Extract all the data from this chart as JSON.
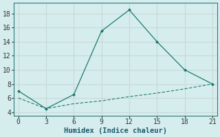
{
  "line1_x": [
    0,
    3,
    6,
    9,
    12,
    15,
    18,
    21
  ],
  "line1_y": [
    7,
    4.5,
    6.5,
    15.5,
    18.5,
    14,
    10,
    8
  ],
  "line2_x": [
    0,
    3,
    6,
    9,
    12,
    15,
    18,
    21
  ],
  "line2_y": [
    6.0,
    4.5,
    5.2,
    5.6,
    6.2,
    6.7,
    7.3,
    8.0
  ],
  "line_color": "#1a7a6e",
  "bg_color": "#d6eded",
  "grid_color": "#c8d8d8",
  "xlabel": "Humidex (Indice chaleur)",
  "xlabel_color": "#1a5a6e",
  "xlim": [
    -0.5,
    21.5
  ],
  "ylim": [
    3.5,
    19.5
  ],
  "xticks": [
    0,
    3,
    6,
    9,
    12,
    15,
    18,
    21
  ],
  "yticks": [
    4,
    6,
    8,
    10,
    12,
    14,
    16,
    18
  ],
  "label_fontsize": 7.5,
  "tick_fontsize": 7
}
